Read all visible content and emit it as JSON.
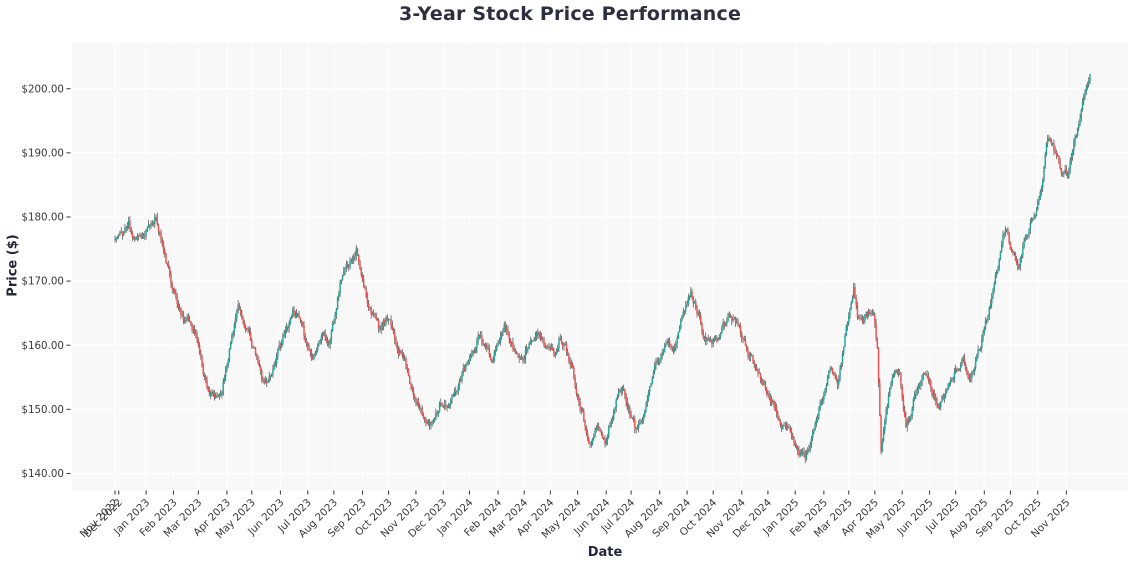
{
  "chart_data": {
    "type": "candlestick",
    "title": "3-Year Stock Price Performance",
    "xlabel": "Date",
    "ylabel": "Price ($)",
    "legend": "none",
    "grid": true,
    "date_range": [
      "2022-11-28",
      "2025-11-28"
    ],
    "ylim": [
      137.42,
      207.13
    ],
    "up_color": "#26a69a",
    "down_color": "#ef5350",
    "wick_color": "#3c3c3c",
    "plot_bg_color": "#f8f8f8",
    "grid_color": "#ffffff",
    "tick_label_color": "#3a3a3a",
    "y_ticks": [
      {
        "value": 140,
        "label": "$140.00"
      },
      {
        "value": 150,
        "label": "$150.00"
      },
      {
        "value": 160,
        "label": "$160.00"
      },
      {
        "value": 170,
        "label": "$170.00"
      },
      {
        "value": 180,
        "label": "$180.00"
      },
      {
        "value": 190,
        "label": "$190.00"
      },
      {
        "value": 200,
        "label": "$200.00"
      }
    ],
    "x_tick_labels": [
      "Nov 2022",
      "Dec 2022",
      "Jan 2023",
      "Feb 2023",
      "Mar 2023",
      "Apr 2023",
      "May 2023",
      "Jun 2023",
      "Jul 2023",
      "Aug 2023",
      "Sep 2023",
      "Oct 2023",
      "Nov 2023",
      "Dec 2023",
      "Jan 2024",
      "Feb 2024",
      "Mar 2024",
      "Apr 2024",
      "May 2024",
      "Jun 2024",
      "Jul 2024",
      "Aug 2024",
      "Sep 2024",
      "Oct 2024",
      "Nov 2024",
      "Dec 2024",
      "Jan 2025",
      "Feb 2025",
      "Mar 2025",
      "Apr 2025",
      "May 2025",
      "Jun 2025",
      "Jul 2025",
      "Aug 2025",
      "Sep 2025",
      "Oct 2025",
      "Nov 2025"
    ],
    "anchors": [
      [
        "2022-11-28",
        176.5
      ],
      [
        "2022-12-06",
        177.5
      ],
      [
        "2022-12-13",
        179.0
      ],
      [
        "2022-12-16",
        176.5
      ],
      [
        "2022-12-22",
        177.5
      ],
      [
        "2022-12-29",
        177.0
      ],
      [
        "2023-01-05",
        178.5
      ],
      [
        "2023-01-11",
        180.0
      ],
      [
        "2023-01-17",
        177.5
      ],
      [
        "2023-01-24",
        173.0
      ],
      [
        "2023-01-31",
        169.5
      ],
      [
        "2023-02-07",
        166.0
      ],
      [
        "2023-02-14",
        164.0
      ],
      [
        "2023-02-21",
        163.5
      ],
      [
        "2023-02-28",
        161.0
      ],
      [
        "2023-03-07",
        156.0
      ],
      [
        "2023-03-14",
        152.5
      ],
      [
        "2023-03-21",
        151.5
      ],
      [
        "2023-03-28",
        153.0
      ],
      [
        "2023-04-04",
        158.5
      ],
      [
        "2023-04-11",
        163.5
      ],
      [
        "2023-04-14",
        165.5
      ],
      [
        "2023-04-20",
        163.5
      ],
      [
        "2023-04-27",
        161.5
      ],
      [
        "2023-05-04",
        158.5
      ],
      [
        "2023-05-11",
        155.0
      ],
      [
        "2023-05-17",
        154.0
      ],
      [
        "2023-05-24",
        156.5
      ],
      [
        "2023-06-01",
        160.0
      ],
      [
        "2023-06-08",
        162.5
      ],
      [
        "2023-06-15",
        165.5
      ],
      [
        "2023-06-21",
        164.5
      ],
      [
        "2023-06-28",
        161.5
      ],
      [
        "2023-07-06",
        158.5
      ],
      [
        "2023-07-12",
        159.5
      ],
      [
        "2023-07-19",
        162.0
      ],
      [
        "2023-07-26",
        160.0
      ],
      [
        "2023-08-02",
        165.5
      ],
      [
        "2023-08-09",
        170.5
      ],
      [
        "2023-08-15",
        172.0
      ],
      [
        "2023-08-22",
        174.0
      ],
      [
        "2023-08-25",
        175.0
      ],
      [
        "2023-08-31",
        170.5
      ],
      [
        "2023-09-07",
        167.0
      ],
      [
        "2023-09-14",
        164.5
      ],
      [
        "2023-09-21",
        162.5
      ],
      [
        "2023-09-28",
        164.0
      ],
      [
        "2023-10-05",
        162.5
      ],
      [
        "2023-10-12",
        159.5
      ],
      [
        "2023-10-19",
        157.5
      ],
      [
        "2023-10-26",
        154.0
      ],
      [
        "2023-11-02",
        151.0
      ],
      [
        "2023-11-09",
        148.5
      ],
      [
        "2023-11-16",
        147.5
      ],
      [
        "2023-11-22",
        149.0
      ],
      [
        "2023-11-29",
        151.5
      ],
      [
        "2023-12-06",
        150.0
      ],
      [
        "2023-12-13",
        152.0
      ],
      [
        "2023-12-20",
        154.5
      ],
      [
        "2023-12-28",
        157.0
      ],
      [
        "2024-01-05",
        159.0
      ],
      [
        "2024-01-11",
        162.0
      ],
      [
        "2024-01-18",
        159.5
      ],
      [
        "2024-01-25",
        158.0
      ],
      [
        "2024-02-01",
        160.5
      ],
      [
        "2024-02-08",
        162.5
      ],
      [
        "2024-02-15",
        160.5
      ],
      [
        "2024-02-22",
        158.5
      ],
      [
        "2024-02-29",
        158.0
      ],
      [
        "2024-03-07",
        160.5
      ],
      [
        "2024-03-14",
        162.0
      ],
      [
        "2024-03-21",
        161.0
      ],
      [
        "2024-03-28",
        159.5
      ],
      [
        "2024-04-04",
        158.5
      ],
      [
        "2024-04-11",
        161.5
      ],
      [
        "2024-04-18",
        159.5
      ],
      [
        "2024-04-25",
        156.5
      ],
      [
        "2024-05-02",
        151.5
      ],
      [
        "2024-05-09",
        147.5
      ],
      [
        "2024-05-16",
        144.5
      ],
      [
        "2024-05-23",
        147.5
      ],
      [
        "2024-05-31",
        144.5
      ],
      [
        "2024-06-07",
        148.0
      ],
      [
        "2024-06-14",
        152.5
      ],
      [
        "2024-06-21",
        153.0
      ],
      [
        "2024-06-28",
        149.5
      ],
      [
        "2024-07-05",
        146.5
      ],
      [
        "2024-07-12",
        149.0
      ],
      [
        "2024-07-19",
        153.0
      ],
      [
        "2024-07-26",
        156.5
      ],
      [
        "2024-08-02",
        158.5
      ],
      [
        "2024-08-09",
        161.0
      ],
      [
        "2024-08-16",
        160.0
      ],
      [
        "2024-08-23",
        163.0
      ],
      [
        "2024-08-30",
        166.0
      ],
      [
        "2024-09-05",
        168.0
      ],
      [
        "2024-09-12",
        165.5
      ],
      [
        "2024-09-19",
        162.0
      ],
      [
        "2024-09-26",
        160.5
      ],
      [
        "2024-10-03",
        160.5
      ],
      [
        "2024-10-10",
        162.5
      ],
      [
        "2024-10-17",
        164.5
      ],
      [
        "2024-10-24",
        164.0
      ],
      [
        "2024-10-31",
        162.0
      ],
      [
        "2024-11-07",
        159.5
      ],
      [
        "2024-11-14",
        157.5
      ],
      [
        "2024-11-21",
        155.5
      ],
      [
        "2024-11-27",
        154.0
      ],
      [
        "2024-12-05",
        151.5
      ],
      [
        "2024-12-12",
        149.5
      ],
      [
        "2024-12-19",
        147.0
      ],
      [
        "2024-12-27",
        146.5
      ],
      [
        "2025-01-06",
        143.5
      ],
      [
        "2025-01-13",
        142.5
      ],
      [
        "2025-01-21",
        146.0
      ],
      [
        "2025-01-28",
        150.0
      ],
      [
        "2025-02-04",
        153.5
      ],
      [
        "2025-02-11",
        156.5
      ],
      [
        "2025-02-18",
        154.5
      ],
      [
        "2025-02-25",
        160.0
      ],
      [
        "2025-03-04",
        166.0
      ],
      [
        "2025-03-07",
        169.0
      ],
      [
        "2025-03-12",
        165.0
      ],
      [
        "2025-03-18",
        163.5
      ],
      [
        "2025-03-24",
        165.0
      ],
      [
        "2025-03-31",
        164.5
      ],
      [
        "2025-04-03",
        160.0
      ],
      [
        "2025-04-08",
        143.5
      ],
      [
        "2025-04-11",
        148.0
      ],
      [
        "2025-04-16",
        152.0
      ],
      [
        "2025-04-23",
        156.5
      ],
      [
        "2025-04-29",
        156.0
      ],
      [
        "2025-05-06",
        147.0
      ],
      [
        "2025-05-13",
        150.5
      ],
      [
        "2025-05-20",
        154.0
      ],
      [
        "2025-05-28",
        156.0
      ],
      [
        "2025-06-04",
        152.5
      ],
      [
        "2025-06-12",
        150.5
      ],
      [
        "2025-06-19",
        152.5
      ],
      [
        "2025-06-26",
        154.5
      ],
      [
        "2025-07-02",
        156.5
      ],
      [
        "2025-07-09",
        158.0
      ],
      [
        "2025-07-15",
        154.5
      ],
      [
        "2025-07-22",
        156.5
      ],
      [
        "2025-07-29",
        159.5
      ],
      [
        "2025-08-05",
        164.0
      ],
      [
        "2025-08-12",
        168.5
      ],
      [
        "2025-08-19",
        173.5
      ],
      [
        "2025-08-26",
        178.5
      ],
      [
        "2025-09-02",
        174.5
      ],
      [
        "2025-09-09",
        172.5
      ],
      [
        "2025-09-16",
        176.0
      ],
      [
        "2025-09-23",
        178.5
      ],
      [
        "2025-09-30",
        181.5
      ],
      [
        "2025-10-07",
        186.0
      ],
      [
        "2025-10-13",
        192.0
      ],
      [
        "2025-10-17",
        191.0
      ],
      [
        "2025-10-23",
        189.0
      ],
      [
        "2025-10-29",
        187.0
      ],
      [
        "2025-11-04",
        186.5
      ],
      [
        "2025-11-11",
        191.0
      ],
      [
        "2025-11-18",
        196.0
      ],
      [
        "2025-11-25",
        201.0
      ],
      [
        "2025-11-28",
        202.5
      ]
    ],
    "noise": {
      "seed": 11,
      "smooth": 0.5,
      "amp": 0.62,
      "wick": 0.7
    }
  }
}
